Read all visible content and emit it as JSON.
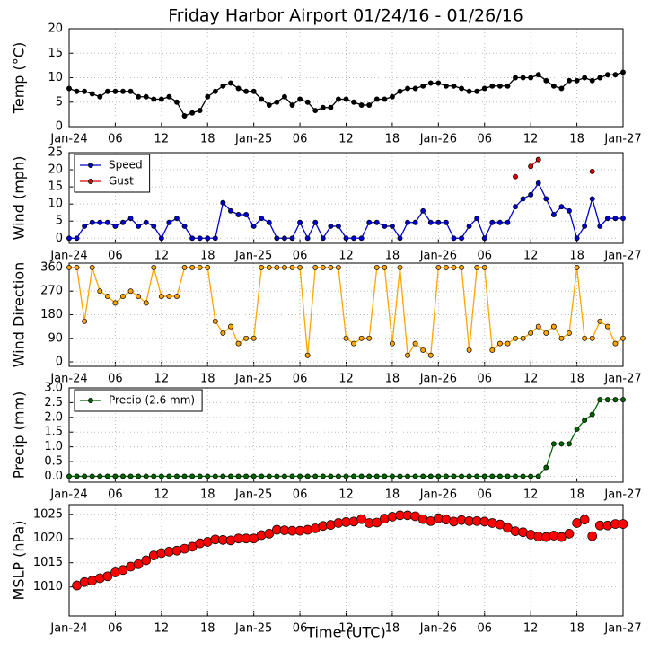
{
  "chart_data": [
    {
      "type": "line",
      "title": "Friday Harbor Airport 01/24/16 - 01/26/16",
      "ylabel": "Temp (°C)",
      "color": "#000000",
      "grid": true,
      "xlim": [
        0,
        72
      ],
      "xticks": [
        {
          "value": 0,
          "label": "Jan-24"
        },
        {
          "value": 6,
          "label": "06"
        },
        {
          "value": 12,
          "label": "12"
        },
        {
          "value": 18,
          "label": "18"
        },
        {
          "value": 24,
          "label": "Jan-25"
        },
        {
          "value": 30,
          "label": "06"
        },
        {
          "value": 36,
          "label": "12"
        },
        {
          "value": 42,
          "label": "18"
        },
        {
          "value": 48,
          "label": "Jan-26"
        },
        {
          "value": 54,
          "label": "06"
        },
        {
          "value": 60,
          "label": "12"
        },
        {
          "value": 66,
          "label": "18"
        },
        {
          "value": 72,
          "label": "Jan-27"
        }
      ],
      "ylim": [
        0,
        20
      ],
      "yticks": [
        0,
        5,
        10,
        15,
        20
      ],
      "x": [
        0,
        1,
        2,
        3,
        4,
        5,
        6,
        7,
        8,
        9,
        10,
        11,
        12,
        13,
        14,
        15,
        16,
        17,
        18,
        19,
        20,
        21,
        22,
        23,
        24,
        25,
        26,
        27,
        28,
        29,
        30,
        31,
        32,
        33,
        34,
        35,
        36,
        37,
        38,
        39,
        40,
        41,
        42,
        43,
        44,
        45,
        46,
        47,
        48,
        49,
        50,
        51,
        52,
        53,
        54,
        55,
        56,
        57,
        58,
        59,
        60,
        61,
        62,
        63,
        64,
        65,
        66,
        67,
        68,
        69,
        70,
        71,
        72
      ],
      "values": [
        7.8,
        7.2,
        7.2,
        6.7,
        6.1,
        7.2,
        7.2,
        7.2,
        7.2,
        6.1,
        6.1,
        5.6,
        5.6,
        6.1,
        5,
        2.2,
        2.8,
        3.3,
        6.1,
        7.2,
        8.3,
        8.9,
        7.8,
        7.2,
        7.2,
        5.6,
        4.4,
        5,
        6.1,
        4.4,
        5.6,
        5,
        3.3,
        3.9,
        3.9,
        5.6,
        5.6,
        5,
        4.4,
        4.4,
        5.6,
        5.6,
        6.1,
        7.2,
        7.8,
        7.8,
        8.3,
        8.9,
        8.9,
        8.3,
        8.3,
        7.8,
        7.2,
        7.2,
        7.8,
        8.3,
        8.3,
        8.3,
        10,
        10,
        10,
        10.6,
        9.4,
        8.3,
        7.8,
        9.4,
        9.4,
        10,
        9.4,
        10,
        10.6,
        10.6,
        11.1
      ]
    },
    {
      "type": "line",
      "ylabel": "Wind (mph)",
      "grid": true,
      "legend": "upper left",
      "xlim": [
        0,
        72
      ],
      "xticks": [
        {
          "value": 0,
          "label": "Jan-24"
        },
        {
          "value": 6,
          "label": "06"
        },
        {
          "value": 12,
          "label": "12"
        },
        {
          "value": 18,
          "label": "18"
        },
        {
          "value": 24,
          "label": "Jan-25"
        },
        {
          "value": 30,
          "label": "06"
        },
        {
          "value": 36,
          "label": "12"
        },
        {
          "value": 42,
          "label": "18"
        },
        {
          "value": 48,
          "label": "Jan-26"
        },
        {
          "value": 54,
          "label": "06"
        },
        {
          "value": 60,
          "label": "12"
        },
        {
          "value": 66,
          "label": "18"
        },
        {
          "value": 72,
          "label": "Jan-27"
        }
      ],
      "ylim": [
        -1.5,
        25
      ],
      "yticks": [
        0,
        5,
        10,
        15,
        20,
        25
      ],
      "x": [
        0,
        1,
        2,
        3,
        4,
        5,
        6,
        7,
        8,
        9,
        10,
        11,
        12,
        13,
        14,
        15,
        16,
        17,
        18,
        19,
        20,
        21,
        22,
        23,
        24,
        25,
        26,
        27,
        28,
        29,
        30,
        31,
        32,
        33,
        34,
        35,
        36,
        37,
        38,
        39,
        40,
        41,
        42,
        43,
        44,
        45,
        46,
        47,
        48,
        49,
        50,
        51,
        52,
        53,
        54,
        55,
        56,
        57,
        58,
        59,
        60,
        61,
        62,
        63,
        64,
        65,
        66,
        67,
        68,
        69,
        70,
        71,
        72
      ],
      "series": [
        {
          "name": "Speed",
          "color": "#0000cc",
          "values": [
            0,
            0,
            3.5,
            4.6,
            4.6,
            4.6,
            3.5,
            4.6,
            5.8,
            3.5,
            4.6,
            3.5,
            0,
            4.6,
            5.8,
            3.5,
            0,
            0,
            0,
            0,
            10.4,
            8,
            6.9,
            6.9,
            3.5,
            5.8,
            4.6,
            0,
            0,
            0,
            4.6,
            0,
            4.6,
            0,
            3.5,
            3.5,
            0,
            0,
            0,
            4.6,
            4.6,
            3.5,
            3.5,
            0,
            4.6,
            4.6,
            8,
            4.6,
            4.6,
            4.6,
            0,
            0,
            3.5,
            5.8,
            0,
            4.6,
            4.6,
            4.6,
            9.2,
            11.5,
            12.7,
            16.1,
            11.5,
            6.9,
            9.2,
            8,
            0,
            3.5,
            11.5,
            3.5,
            5.8,
            5.8,
            5.8
          ]
        },
        {
          "name": "Gust",
          "color": "#dd0000",
          "values": [
            null,
            null,
            null,
            null,
            null,
            null,
            null,
            null,
            null,
            null,
            null,
            null,
            null,
            null,
            null,
            null,
            null,
            null,
            null,
            null,
            null,
            null,
            null,
            null,
            null,
            null,
            null,
            null,
            null,
            null,
            null,
            null,
            null,
            null,
            null,
            null,
            null,
            null,
            null,
            null,
            null,
            null,
            null,
            null,
            null,
            null,
            null,
            null,
            null,
            null,
            null,
            null,
            null,
            null,
            null,
            null,
            null,
            null,
            18,
            null,
            21,
            23,
            null,
            null,
            null,
            null,
            null,
            null,
            19.5,
            null,
            null,
            null,
            null
          ]
        }
      ]
    },
    {
      "type": "line",
      "ylabel": "Wind Direction",
      "color": "#ffa500",
      "grid": true,
      "xlim": [
        0,
        72
      ],
      "xticks": [
        {
          "value": 0,
          "label": "Jan-24"
        },
        {
          "value": 6,
          "label": "06"
        },
        {
          "value": 12,
          "label": "12"
        },
        {
          "value": 18,
          "label": "18"
        },
        {
          "value": 24,
          "label": "Jan-25"
        },
        {
          "value": 30,
          "label": "06"
        },
        {
          "value": 36,
          "label": "12"
        },
        {
          "value": 42,
          "label": "18"
        },
        {
          "value": 48,
          "label": "Jan-26"
        },
        {
          "value": 54,
          "label": "06"
        },
        {
          "value": 60,
          "label": "12"
        },
        {
          "value": 66,
          "label": "18"
        },
        {
          "value": 72,
          "label": "Jan-27"
        }
      ],
      "ylim": [
        -17,
        377
      ],
      "yticks": [
        0,
        90,
        180,
        270,
        360
      ],
      "x": [
        0,
        1,
        2,
        3,
        4,
        5,
        6,
        7,
        8,
        9,
        10,
        11,
        12,
        13,
        14,
        15,
        16,
        17,
        18,
        19,
        20,
        21,
        22,
        23,
        24,
        25,
        26,
        27,
        28,
        29,
        30,
        31,
        32,
        33,
        34,
        35,
        36,
        37,
        38,
        39,
        40,
        41,
        42,
        43,
        44,
        45,
        46,
        47,
        48,
        49,
        50,
        51,
        52,
        53,
        54,
        55,
        56,
        57,
        58,
        59,
        60,
        61,
        62,
        63,
        64,
        65,
        66,
        67,
        68,
        69,
        70,
        71,
        72
      ],
      "values": [
        360,
        360,
        155,
        360,
        270,
        250,
        225,
        250,
        270,
        250,
        225,
        360,
        250,
        250,
        250,
        360,
        360,
        360,
        360,
        155,
        110,
        135,
        70,
        90,
        90,
        360,
        360,
        360,
        360,
        360,
        360,
        25,
        360,
        360,
        360,
        360,
        90,
        70,
        90,
        90,
        360,
        360,
        70,
        360,
        25,
        70,
        45,
        25,
        360,
        360,
        360,
        360,
        45,
        360,
        360,
        45,
        70,
        70,
        90,
        90,
        110,
        135,
        110,
        135,
        90,
        110,
        360,
        90,
        90,
        155,
        135,
        70,
        90
      ]
    },
    {
      "type": "line",
      "ylabel": "Precip (mm)",
      "grid": true,
      "legend": "upper left",
      "xlim": [
        0,
        72
      ],
      "xticks": [
        {
          "value": 0,
          "label": "Jan-24"
        },
        {
          "value": 6,
          "label": "06"
        },
        {
          "value": 12,
          "label": "12"
        },
        {
          "value": 18,
          "label": "18"
        },
        {
          "value": 24,
          "label": "Jan-25"
        },
        {
          "value": 30,
          "label": "06"
        },
        {
          "value": 36,
          "label": "12"
        },
        {
          "value": 42,
          "label": "18"
        },
        {
          "value": 48,
          "label": "Jan-26"
        },
        {
          "value": 54,
          "label": "06"
        },
        {
          "value": 60,
          "label": "12"
        },
        {
          "value": 66,
          "label": "18"
        },
        {
          "value": 72,
          "label": "Jan-27"
        }
      ],
      "ylim": [
        -0.2,
        3
      ],
      "yticks": [
        {
          "value": 0,
          "label": "0.0"
        },
        0.5,
        {
          "value": 1,
          "label": "1.0"
        },
        1.5,
        {
          "value": 2,
          "label": "2.0"
        },
        2.5,
        {
          "value": 3,
          "label": "3.0"
        }
      ],
      "x": [
        0,
        1,
        2,
        3,
        4,
        5,
        6,
        7,
        8,
        9,
        10,
        11,
        12,
        13,
        14,
        15,
        16,
        17,
        18,
        19,
        20,
        21,
        22,
        23,
        24,
        25,
        26,
        27,
        28,
        29,
        30,
        31,
        32,
        33,
        34,
        35,
        36,
        37,
        38,
        39,
        40,
        41,
        42,
        43,
        44,
        45,
        46,
        47,
        48,
        49,
        50,
        51,
        52,
        53,
        54,
        55,
        56,
        57,
        58,
        59,
        60,
        61,
        62,
        63,
        64,
        65,
        66,
        67,
        68,
        69,
        70,
        71,
        72
      ],
      "series": [
        {
          "name": "Precip (2.6 mm)",
          "color": "#006400",
          "values": [
            0,
            0,
            0,
            0,
            0,
            0,
            0,
            0,
            0,
            0,
            0,
            0,
            0,
            0,
            0,
            0,
            0,
            0,
            0,
            0,
            0,
            0,
            0,
            0,
            0,
            0,
            0,
            0,
            0,
            0,
            0,
            0,
            0,
            0,
            0,
            0,
            0,
            0,
            0,
            0,
            0,
            0,
            0,
            0,
            0,
            0,
            0,
            0,
            0,
            0,
            0,
            0,
            0,
            0,
            0,
            0,
            0,
            0,
            0,
            0,
            0,
            0,
            0.3,
            1.1,
            1.1,
            1.1,
            1.6,
            1.9,
            2.1,
            2.6,
            2.6,
            2.6,
            2.6
          ]
        }
      ]
    },
    {
      "type": "scatter",
      "ylabel": "MSLP (hPa)",
      "xlabel": "Time (UTC)",
      "color": "#ff0000",
      "grid": true,
      "xlim": [
        0,
        72
      ],
      "xticks": [
        {
          "value": 0,
          "label": "Jan-24"
        },
        {
          "value": 6,
          "label": "06"
        },
        {
          "value": 12,
          "label": "12"
        },
        {
          "value": 18,
          "label": "18"
        },
        {
          "value": 24,
          "label": "Jan-25"
        },
        {
          "value": 30,
          "label": "06"
        },
        {
          "value": 36,
          "label": "12"
        },
        {
          "value": 42,
          "label": "18"
        },
        {
          "value": 48,
          "label": "Jan-26"
        },
        {
          "value": 54,
          "label": "06"
        },
        {
          "value": 60,
          "label": "12"
        },
        {
          "value": 66,
          "label": "18"
        },
        {
          "value": 72,
          "label": "Jan-27"
        }
      ],
      "ylim": [
        1004,
        1027
      ],
      "yticks": [
        1010,
        1015,
        1020,
        1025
      ],
      "x": [
        1,
        2,
        3,
        4,
        5,
        6,
        7,
        8,
        9,
        10,
        11,
        12,
        13,
        14,
        15,
        16,
        17,
        18,
        19,
        20,
        21,
        22,
        23,
        24,
        25,
        26,
        27,
        28,
        29,
        30,
        31,
        32,
        33,
        34,
        35,
        36,
        37,
        38,
        39,
        40,
        41,
        42,
        43,
        44,
        45,
        46,
        47,
        48,
        49,
        50,
        51,
        52,
        53,
        54,
        55,
        56,
        57,
        58,
        59,
        60,
        61,
        62,
        63,
        64,
        65,
        66,
        67,
        68,
        69,
        70,
        71,
        72
      ],
      "values": [
        1010.3,
        1011,
        1011.3,
        1011.8,
        1012.2,
        1013,
        1013.5,
        1014.2,
        1014.7,
        1015.5,
        1016.5,
        1017,
        1017.3,
        1017.5,
        1017.9,
        1018.3,
        1019,
        1019.3,
        1019.8,
        1019.7,
        1019.6,
        1020,
        1020,
        1020,
        1020.7,
        1021,
        1021.8,
        1021.7,
        1021.6,
        1021.6,
        1021.8,
        1022.1,
        1022.6,
        1022.8,
        1023.2,
        1023.4,
        1023.5,
        1024,
        1023.2,
        1023.3,
        1024.1,
        1024.5,
        1024.8,
        1024.8,
        1024.6,
        1024,
        1023.6,
        1024.2,
        1023.9,
        1023.5,
        1023.8,
        1023.6,
        1023.6,
        1023.5,
        1023.2,
        1022.9,
        1022.2,
        1021.5,
        1021.3,
        1020.8,
        1020.4,
        1020.3,
        1020.6,
        1020.3,
        1021,
        1023.2,
        1023.9,
        1020.5,
        1022.7,
        1022.7,
        1023,
        1023
      ]
    }
  ]
}
